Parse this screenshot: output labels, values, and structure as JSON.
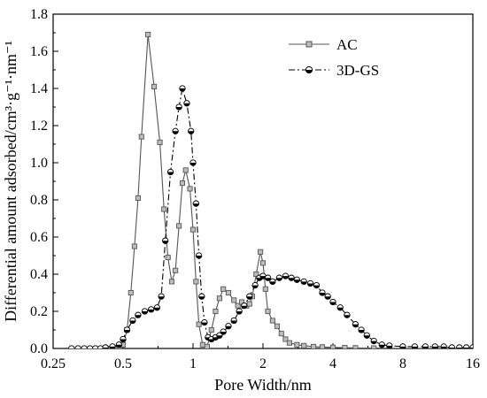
{
  "chart_data": {
    "type": "line",
    "xscale": "log2",
    "xlabel": "Pore Width/nm",
    "ylabel": "Differential amount adsorbed/cm³·g⁻¹·nm⁻¹",
    "xlim": [
      0.25,
      16
    ],
    "ylim": [
      0,
      1.8
    ],
    "xticks": [
      "0.25",
      "0.5",
      "1",
      "2",
      "4",
      "8",
      "16"
    ],
    "yticks": [
      "0.0",
      "0.2",
      "0.4",
      "0.6",
      "0.8",
      "1.0",
      "1.2",
      "1.4",
      "1.6",
      "1.8"
    ],
    "grid": false,
    "legend_position": "top-right",
    "series": [
      {
        "name": "AC",
        "color": "#555555",
        "line_style": "solid",
        "marker": "square",
        "points": [
          [
            0.42,
            0.0
          ],
          [
            0.44,
            0.0
          ],
          [
            0.46,
            0.0
          ],
          [
            0.48,
            0.01
          ],
          [
            0.5,
            0.02
          ],
          [
            0.52,
            0.1
          ],
          [
            0.54,
            0.3
          ],
          [
            0.56,
            0.55
          ],
          [
            0.58,
            0.81
          ],
          [
            0.6,
            1.14
          ],
          [
            0.64,
            1.69
          ],
          [
            0.68,
            1.41
          ],
          [
            0.72,
            1.11
          ],
          [
            0.75,
            0.75
          ],
          [
            0.78,
            0.49
          ],
          [
            0.81,
            0.36
          ],
          [
            0.84,
            0.42
          ],
          [
            0.87,
            0.66
          ],
          [
            0.9,
            0.89
          ],
          [
            0.93,
            0.96
          ],
          [
            0.97,
            0.86
          ],
          [
            1.0,
            0.64
          ],
          [
            1.03,
            0.36
          ],
          [
            1.06,
            0.13
          ],
          [
            1.1,
            0.02
          ],
          [
            1.15,
            0.01
          ],
          [
            1.2,
            0.1
          ],
          [
            1.25,
            0.2
          ],
          [
            1.3,
            0.27
          ],
          [
            1.35,
            0.32
          ],
          [
            1.42,
            0.3
          ],
          [
            1.5,
            0.26
          ],
          [
            1.56,
            0.23
          ],
          [
            1.62,
            0.25
          ],
          [
            1.7,
            0.23
          ],
          [
            1.75,
            0.24
          ],
          [
            1.8,
            0.28
          ],
          [
            1.87,
            0.4
          ],
          [
            1.95,
            0.52
          ],
          [
            2.0,
            0.46
          ],
          [
            2.05,
            0.32
          ],
          [
            2.1,
            0.2
          ],
          [
            2.2,
            0.15
          ],
          [
            2.3,
            0.12
          ],
          [
            2.4,
            0.08
          ],
          [
            2.5,
            0.05
          ],
          [
            2.6,
            0.03
          ],
          [
            2.8,
            0.02
          ],
          [
            3.0,
            0.015
          ],
          [
            3.3,
            0.01
          ],
          [
            3.6,
            0.008
          ],
          [
            4.0,
            0.006
          ],
          [
            4.5,
            0.004
          ],
          [
            5.0,
            0.003
          ],
          [
            6.0,
            0.002
          ],
          [
            7.0,
            0.001
          ],
          [
            8.0,
            0.0
          ],
          [
            10.0,
            0.0
          ],
          [
            12.0,
            0.0
          ],
          [
            14.0,
            0.0
          ],
          [
            16.0,
            0.0
          ]
        ]
      },
      {
        "name": "3D-GS",
        "color": "#000000",
        "line_style": "dash-dot",
        "marker": "half-filled circle",
        "points": [
          [
            0.3,
            0.0
          ],
          [
            0.32,
            0.0
          ],
          [
            0.34,
            0.0
          ],
          [
            0.36,
            0.0
          ],
          [
            0.38,
            0.0
          ],
          [
            0.4,
            0.0
          ],
          [
            0.42,
            0.005
          ],
          [
            0.45,
            0.01
          ],
          [
            0.48,
            0.02
          ],
          [
            0.5,
            0.05
          ],
          [
            0.52,
            0.1
          ],
          [
            0.55,
            0.15
          ],
          [
            0.58,
            0.18
          ],
          [
            0.62,
            0.2
          ],
          [
            0.66,
            0.21
          ],
          [
            0.7,
            0.22
          ],
          [
            0.73,
            0.28
          ],
          [
            0.76,
            0.58
          ],
          [
            0.8,
            0.95
          ],
          [
            0.84,
            1.17
          ],
          [
            0.87,
            1.3
          ],
          [
            0.9,
            1.4
          ],
          [
            0.94,
            1.32
          ],
          [
            0.98,
            1.17
          ],
          [
            1.0,
            1.0
          ],
          [
            1.03,
            0.78
          ],
          [
            1.06,
            0.5
          ],
          [
            1.09,
            0.28
          ],
          [
            1.12,
            0.14
          ],
          [
            1.16,
            0.06
          ],
          [
            1.2,
            0.05
          ],
          [
            1.25,
            0.06
          ],
          [
            1.3,
            0.07
          ],
          [
            1.35,
            0.09
          ],
          [
            1.42,
            0.12
          ],
          [
            1.5,
            0.15
          ],
          [
            1.58,
            0.2
          ],
          [
            1.66,
            0.23
          ],
          [
            1.75,
            0.28
          ],
          [
            1.85,
            0.34
          ],
          [
            1.93,
            0.38
          ],
          [
            2.0,
            0.39
          ],
          [
            2.1,
            0.38
          ],
          [
            2.2,
            0.36
          ],
          [
            2.35,
            0.38
          ],
          [
            2.5,
            0.39
          ],
          [
            2.65,
            0.38
          ],
          [
            2.8,
            0.37
          ],
          [
            3.0,
            0.36
          ],
          [
            3.2,
            0.35
          ],
          [
            3.4,
            0.34
          ],
          [
            3.6,
            0.3
          ],
          [
            3.8,
            0.28
          ],
          [
            4.0,
            0.25
          ],
          [
            4.3,
            0.22
          ],
          [
            4.6,
            0.18
          ],
          [
            5.0,
            0.13
          ],
          [
            5.3,
            0.1
          ],
          [
            5.6,
            0.07
          ],
          [
            6.0,
            0.04
          ],
          [
            6.5,
            0.02
          ],
          [
            7.0,
            0.015
          ],
          [
            8.0,
            0.01
          ],
          [
            9.0,
            0.01
          ],
          [
            10.0,
            0.01
          ],
          [
            11.0,
            0.01
          ],
          [
            12.0,
            0.01
          ],
          [
            13.0,
            0.005
          ],
          [
            14.0,
            0.005
          ],
          [
            15.0,
            0.005
          ],
          [
            16.0,
            0.005
          ]
        ]
      }
    ]
  }
}
